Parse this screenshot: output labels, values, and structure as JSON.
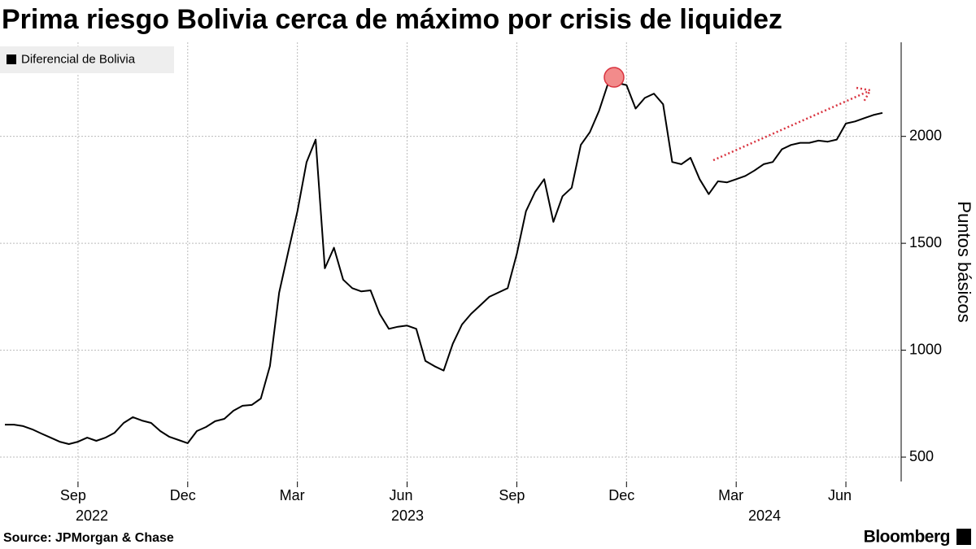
{
  "chart_data": {
    "type": "line",
    "title": "Prima riesgo Bolivia cerca de máximo por crisis de liquidez",
    "y_axis_label": "Puntos básicos",
    "source": "Source: JPMorgan & Chase",
    "brand": "Bloomberg",
    "categories": [
      null,
      null,
      null,
      null,
      null,
      null,
      null,
      null,
      "Sep",
      null,
      null,
      null,
      null,
      null,
      null,
      null,
      null,
      null,
      null,
      null,
      "Dec",
      null,
      null,
      null,
      null,
      null,
      null,
      null,
      null,
      null,
      null,
      null,
      "Mar",
      null,
      null,
      null,
      null,
      null,
      null,
      null,
      null,
      null,
      null,
      null,
      "Jun",
      null,
      null,
      null,
      null,
      null,
      null,
      null,
      null,
      null,
      null,
      null,
      "Sep",
      null,
      null,
      null,
      null,
      null,
      null,
      null,
      null,
      null,
      null,
      null,
      "Dec",
      null,
      null,
      null,
      null,
      null,
      null,
      null,
      null,
      null,
      null,
      null,
      "Mar",
      null,
      null,
      null,
      null,
      null,
      null,
      null,
      null,
      null,
      null,
      null,
      "Jun",
      null,
      null,
      null,
      null
    ],
    "x_group_labels": [
      "2022",
      "2023",
      "2024"
    ],
    "series": [
      {
        "name": "Diferencial de Bolivia",
        "color": "#000000",
        "values": [
          652,
          652,
          645,
          630,
          610,
          591,
          572,
          561,
          572,
          591,
          576,
          591,
          614,
          660,
          687,
          671,
          660,
          622,
          595,
          580,
          565,
          622,
          641,
          668,
          679,
          717,
          740,
          744,
          774,
          926,
          1269,
          1460,
          1650,
          1879,
          1985,
          1383,
          1479,
          1330,
          1290,
          1275,
          1280,
          1170,
          1100,
          1110,
          1115,
          1100,
          950,
          925,
          905,
          1030,
          1120,
          1170,
          1210,
          1250,
          1270,
          1290,
          1450,
          1650,
          1740,
          1800,
          1600,
          1720,
          1760,
          1960,
          2020,
          2120,
          2250,
          2250,
          2240,
          2130,
          2180,
          2200,
          2150,
          1880,
          1870,
          1900,
          1800,
          1730,
          1790,
          1785,
          1800,
          1815,
          1840,
          1870,
          1880,
          1940,
          1960,
          1970,
          1970,
          1980,
          1975,
          1985,
          2060,
          2070,
          2085,
          2100,
          2110
        ]
      }
    ],
    "ylim": [
      386,
      2440
    ],
    "yticks": [
      500,
      1000,
      1500,
      2000
    ],
    "grid": true,
    "legend": "top-left"
  }
}
